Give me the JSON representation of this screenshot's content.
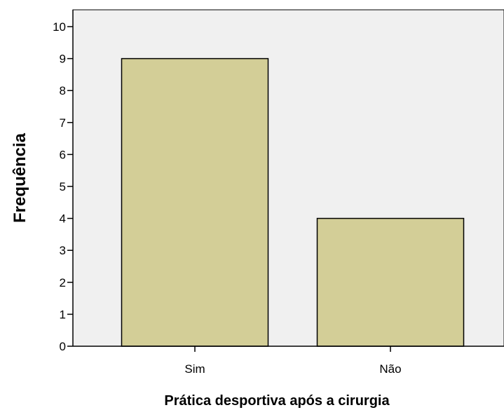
{
  "chart_data": {
    "type": "bar",
    "categories": [
      "Sim",
      "Não"
    ],
    "values": [
      9,
      4
    ],
    "title": "",
    "xlabel": "Prática desportiva após a cirurgia",
    "ylabel": "Frequência",
    "ylim": [
      0,
      10
    ],
    "yticks": [
      "0",
      "1",
      "2",
      "3",
      "4",
      "5",
      "6",
      "7",
      "8",
      "9",
      "10"
    ],
    "grid": false,
    "legend": "none",
    "colors": {
      "plot_background": "#F0F0F0",
      "bar_fill": "#D3CE97",
      "bar_stroke": "#000000",
      "axis": "#000000",
      "text": "#000000"
    }
  }
}
